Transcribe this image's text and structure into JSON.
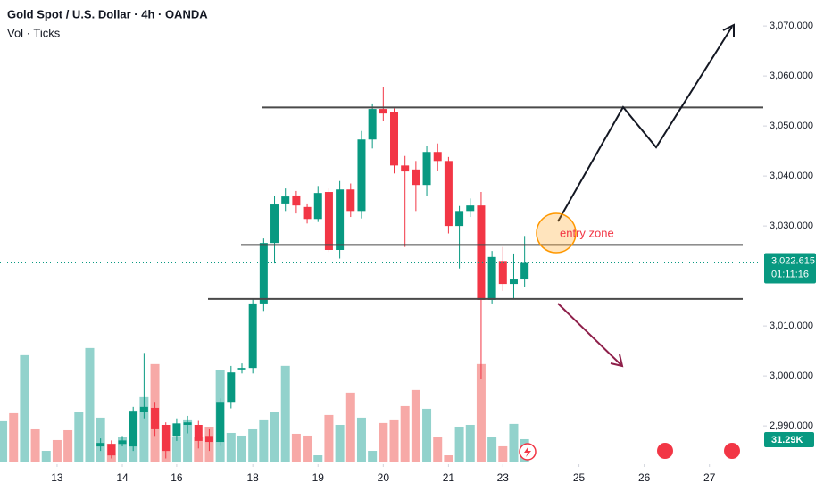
{
  "chart_data": {
    "type": "candlestick",
    "title": "Gold Spot / U.S. Dollar · 4h · OANDA",
    "subtitle": "Vol · Ticks",
    "xlim": [
      -0.25,
      69.95
    ],
    "xticks": [
      {
        "value": 5,
        "label": "13"
      },
      {
        "value": 11,
        "label": "14"
      },
      {
        "value": 16,
        "label": "16"
      },
      {
        "value": 23,
        "label": "18"
      },
      {
        "value": 29,
        "label": "19"
      },
      {
        "value": 35,
        "label": "20"
      },
      {
        "value": 41,
        "label": "21"
      },
      {
        "value": 46,
        "label": "23"
      },
      {
        "value": 53,
        "label": "25"
      },
      {
        "value": 59,
        "label": "26"
      },
      {
        "value": 65,
        "label": "27"
      }
    ],
    "ylim": [
      2982.7,
      3075.2
    ],
    "yticks": [
      {
        "value": 3070,
        "label": "3,070.000"
      },
      {
        "value": 3060,
        "label": "3,060.000"
      },
      {
        "value": 3050,
        "label": "3,050.000"
      },
      {
        "value": 3040,
        "label": "3,040.000"
      },
      {
        "value": 3030,
        "label": "3,030.000"
      },
      {
        "value": 3010,
        "label": "3,010.000"
      },
      {
        "value": 3000,
        "label": "3,000.000"
      },
      {
        "value": 2990,
        "label": "2,990.000"
      }
    ],
    "up_color": "#089981",
    "down_color": "#f23645",
    "open": [
      null,
      null,
      null,
      null,
      null,
      null,
      null,
      null,
      null,
      2985.9,
      2986.4,
      2986.4,
      2985.9,
      2992.7,
      2993.6,
      2990.2,
      2988.0,
      2990.2,
      2990.2,
      2988.0,
      2986.8,
      2994.8,
      3001.3,
      3001.6,
      3014.5,
      3026.6,
      3034.5,
      3036.1,
      3033.8,
      3031.4,
      3036.8,
      3025.2,
      3037.3,
      3033.0,
      3047.3,
      3053.4,
      3052.7,
      3042.1,
      3041.3,
      3038.2,
      3044.8,
      3043.0,
      3030.0,
      3033.0,
      3034.1,
      3015.2,
      3023.0,
      3018.4,
      3019.3
    ],
    "high": [
      null,
      null,
      null,
      null,
      null,
      null,
      null,
      null,
      null,
      2987.5,
      2987.1,
      2988.0,
      2993.8,
      3004.6,
      2994.8,
      2990.7,
      2991.5,
      2992.0,
      2991.0,
      2989.5,
      2995.5,
      3002.0,
      3002.5,
      3015.5,
      3027.5,
      3036.0,
      3037.5,
      3037.0,
      3034.5,
      3038.0,
      3037.5,
      3039.0,
      3038.5,
      3049.0,
      3054.5,
      3057.7,
      3053.5,
      3044.0,
      3043.0,
      3046.0,
      3046.5,
      3043.8,
      3034.0,
      3035.5,
      3036.8,
      3025.0,
      3025.8,
      3024.5,
      3028.0
    ],
    "low": [
      null,
      null,
      null,
      null,
      null,
      null,
      null,
      null,
      null,
      2985.0,
      2983.5,
      2985.9,
      2985.0,
      2991.5,
      2988.0,
      2983.5,
      2987.0,
      2988.5,
      2985.5,
      2985.0,
      2986.0,
      2993.5,
      3000.5,
      3000.5,
      3013.0,
      3022.5,
      3033.0,
      3032.5,
      3030.5,
      3030.8,
      3024.8,
      3023.5,
      3031.8,
      3031.5,
      3045.5,
      3051.0,
      3040.5,
      3025.8,
      3033.0,
      3036.0,
      3041.0,
      3028.5,
      3021.5,
      3031.8,
      2999.3,
      3014.5,
      3017.0,
      3015.5,
      3017.8
    ],
    "close": [
      null,
      null,
      null,
      null,
      null,
      null,
      null,
      null,
      null,
      2986.6,
      2984.1,
      2987.1,
      2993.0,
      2993.8,
      2989.5,
      2985.0,
      2990.5,
      2990.7,
      2987.0,
      2986.8,
      2994.8,
      3000.7,
      3001.6,
      3014.5,
      3026.6,
      3034.3,
      3035.9,
      3034.1,
      3031.4,
      3036.6,
      3025.2,
      3037.3,
      3033.0,
      3047.3,
      3053.4,
      3052.5,
      3042.1,
      3040.9,
      3038.2,
      3044.8,
      3043.0,
      3030.0,
      3033.0,
      3034.1,
      3015.2,
      3023.8,
      3018.4,
      3019.3,
      3022.6
    ],
    "volume": {
      "ylim": [
        0,
        250
      ],
      "values": [
        55.4,
        66.2,
        144.4,
        45.7,
        15.6,
        30.1,
        43.3,
        67.4,
        154.0,
        60.2,
        25.3,
        33.7,
        69.8,
        87.9,
        132.4,
        50.5,
        33.7,
        57.8,
        33.7,
        48.1,
        124.0,
        39.7,
        36.1,
        45.7,
        57.8,
        67.4,
        130.0,
        38.5,
        36.1,
        9.6,
        63.8,
        50.5,
        93.9,
        60.2,
        15.6,
        53.0,
        57.8,
        75.8,
        97.5,
        72.2,
        33.7,
        9.6,
        48.1,
        50.5,
        132.4,
        33.7,
        21.7,
        51.8,
        31.29
      ],
      "colors": [
        "#92d2cc",
        "#f7a9a7",
        "#92d2cc",
        "#f7a9a7",
        "#92d2cc",
        "#f7a9a7",
        "#f7a9a7",
        "#92d2cc",
        "#92d2cc",
        "#92d2cc",
        "#f7a9a7",
        "#92d2cc",
        "#92d2cc",
        "#92d2cc",
        "#f7a9a7",
        "#f7a9a7",
        "#92d2cc",
        "#92d2cc",
        "#f7a9a7",
        "#f7a9a7",
        "#92d2cc",
        "#92d2cc",
        "#92d2cc",
        "#92d2cc",
        "#92d2cc",
        "#92d2cc",
        "#92d2cc",
        "#f7a9a7",
        "#f7a9a7",
        "#92d2cc",
        "#f7a9a7",
        "#92d2cc",
        "#f7a9a7",
        "#92d2cc",
        "#92d2cc",
        "#f7a9a7",
        "#f7a9a7",
        "#f7a9a7",
        "#f7a9a7",
        "#92d2cc",
        "#f7a9a7",
        "#f7a9a7",
        "#92d2cc",
        "#92d2cc",
        "#f7a9a7",
        "#92d2cc",
        "#f7a9a7",
        "#92d2cc",
        "#92d2cc"
      ],
      "last_label": "31.29K"
    },
    "current_price": {
      "value": 3022.615,
      "label": "3,022.615",
      "countdown": "01:11:16"
    },
    "levels": [
      3053.7,
      3026.2,
      3015.4
    ],
    "annotation": "entry zone"
  }
}
